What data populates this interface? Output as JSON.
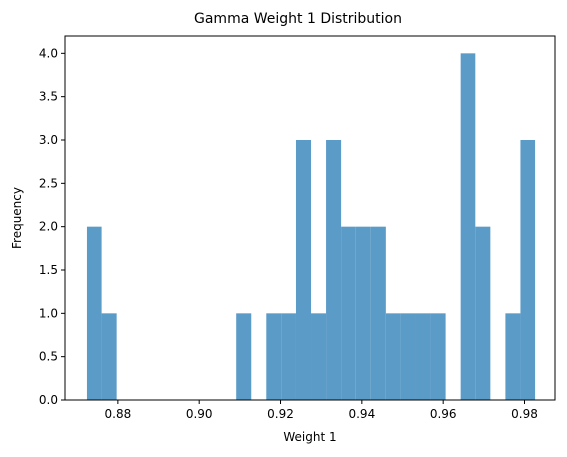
{
  "chart_data": {
    "type": "bar",
    "title": "Gamma Weight 1 Distribution",
    "xlabel": "Weight 1",
    "ylabel": "Frequency",
    "xlim": [
      0.867,
      0.9875
    ],
    "ylim": [
      0,
      4.2
    ],
    "x_ticks": [
      0.88,
      0.9,
      0.92,
      0.94,
      0.96,
      0.98
    ],
    "x_tick_labels": [
      "0.88",
      "0.90",
      "0.92",
      "0.94",
      "0.96",
      "0.98"
    ],
    "y_ticks": [
      0.0,
      0.5,
      1.0,
      1.5,
      2.0,
      2.5,
      3.0,
      3.5,
      4.0
    ],
    "y_tick_labels": [
      "0.0",
      "0.5",
      "1.0",
      "1.5",
      "2.0",
      "2.5",
      "3.0",
      "3.5",
      "4.0"
    ],
    "bar_color": "#5b9bc8",
    "grid": false,
    "bins": [
      {
        "x0": 0.8724,
        "x1": 0.876,
        "count": 2
      },
      {
        "x0": 0.876,
        "x1": 0.8797,
        "count": 1
      },
      {
        "x0": 0.9091,
        "x1": 0.9128,
        "count": 1
      },
      {
        "x0": 0.9165,
        "x1": 0.9202,
        "count": 1
      },
      {
        "x0": 0.9202,
        "x1": 0.9238,
        "count": 1
      },
      {
        "x0": 0.9238,
        "x1": 0.9275,
        "count": 3
      },
      {
        "x0": 0.9275,
        "x1": 0.9312,
        "count": 1
      },
      {
        "x0": 0.9312,
        "x1": 0.9349,
        "count": 3
      },
      {
        "x0": 0.9349,
        "x1": 0.9385,
        "count": 2
      },
      {
        "x0": 0.9385,
        "x1": 0.9422,
        "count": 2
      },
      {
        "x0": 0.9422,
        "x1": 0.9459,
        "count": 2
      },
      {
        "x0": 0.9459,
        "x1": 0.9496,
        "count": 1
      },
      {
        "x0": 0.9496,
        "x1": 0.9532,
        "count": 1
      },
      {
        "x0": 0.9532,
        "x1": 0.9569,
        "count": 1
      },
      {
        "x0": 0.9569,
        "x1": 0.9606,
        "count": 1
      },
      {
        "x0": 0.9643,
        "x1": 0.9679,
        "count": 4
      },
      {
        "x0": 0.9679,
        "x1": 0.9716,
        "count": 2
      },
      {
        "x0": 0.9753,
        "x1": 0.979,
        "count": 1
      },
      {
        "x0": 0.979,
        "x1": 0.9826,
        "count": 3
      }
    ]
  }
}
